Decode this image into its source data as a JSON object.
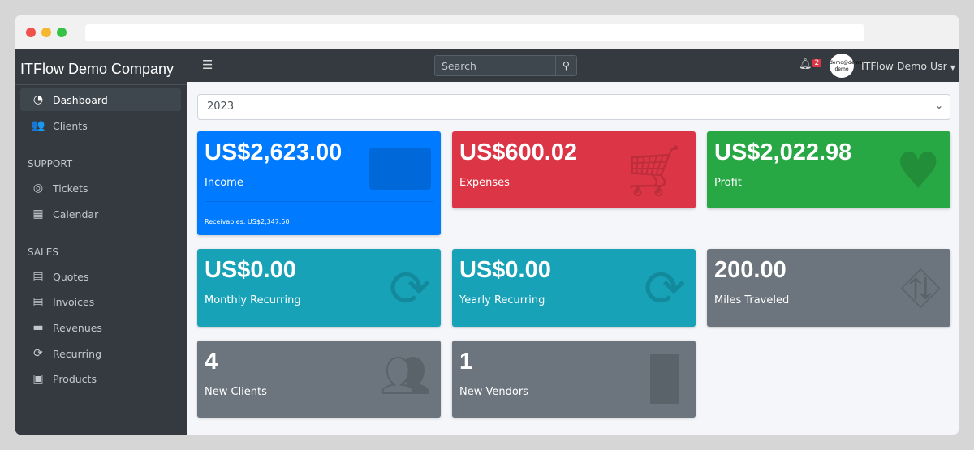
{
  "sidebar": {
    "brand": "ITFlow Demo Company",
    "items": [
      {
        "label": "Dashboard",
        "icon": "gauge-icon"
      },
      {
        "label": "Clients",
        "icon": "users-icon"
      }
    ],
    "support_header": "SUPPORT",
    "support": [
      {
        "label": "Tickets",
        "icon": "life-ring-icon"
      },
      {
        "label": "Calendar",
        "icon": "calendar-icon"
      }
    ],
    "sales_header": "SALES",
    "sales": [
      {
        "label": "Quotes",
        "icon": "file-icon"
      },
      {
        "label": "Invoices",
        "icon": "invoice-icon"
      },
      {
        "label": "Revenues",
        "icon": "credit-card-icon"
      },
      {
        "label": "Recurring",
        "icon": "sync-icon"
      },
      {
        "label": "Products",
        "icon": "box-icon"
      }
    ]
  },
  "topbar": {
    "search_placeholder": "Search",
    "notifications": "2",
    "avatar_text": "demo@demo demo",
    "user": "ITFlow Demo Usr"
  },
  "year": "2023",
  "cards": [
    {
      "value": "US$2,623.00",
      "label": "Income",
      "footer": "Receivables: US$2,347.50",
      "color": "#007bff"
    },
    {
      "value": "US$600.02",
      "label": "Expenses",
      "color": "#dc3545"
    },
    {
      "value": "US$2,022.98",
      "label": "Profit",
      "color": "#28a745"
    },
    {
      "value": "US$0.00",
      "label": "Monthly Recurring",
      "color": "#17a2b8"
    },
    {
      "value": "US$0.00",
      "label": "Yearly Recurring",
      "color": "#17a2b8"
    },
    {
      "value": "200.00",
      "label": "Miles Traveled",
      "color": "#6c757d"
    },
    {
      "value": "4",
      "label": "New Clients",
      "color": "#6c757d"
    },
    {
      "value": "1",
      "label": "New Vendors",
      "color": "#6c757d"
    }
  ]
}
